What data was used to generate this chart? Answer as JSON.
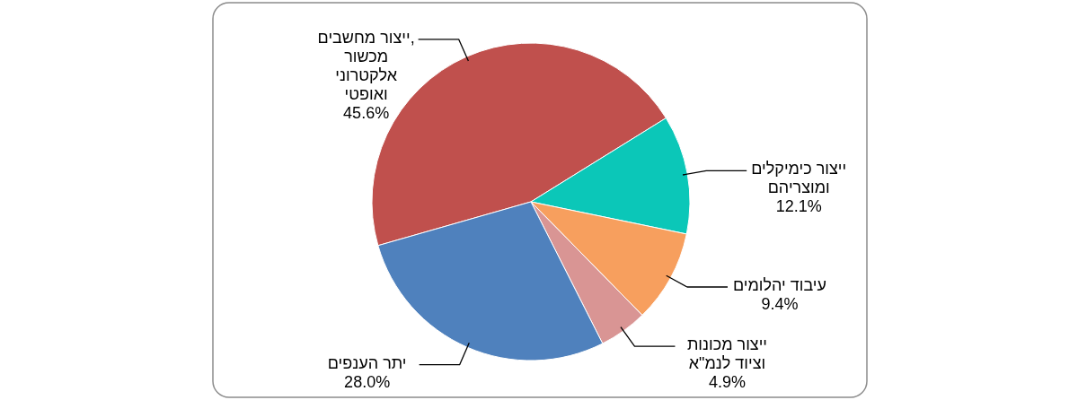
{
  "chart_data": {
    "type": "pie",
    "categories": [
      "ייצור מחשבים, מכשור אלקטרוני ואופטי",
      "ייצור כימיקלים ומוצריהם",
      "עיבוד יהלומים",
      "ייצור מכונות וציוד לנמ\"א",
      "יתר הענפים"
    ],
    "values": [
      45.6,
      12.1,
      9.4,
      4.9,
      28.0
    ],
    "value_labels": [
      "45.6%",
      "12.1%",
      "9.4%",
      "4.9%",
      "28.0%"
    ],
    "colors": [
      "#c0504d",
      "#0bc7b8",
      "#f79f5e",
      "#d99594",
      "#4f81bd"
    ]
  }
}
